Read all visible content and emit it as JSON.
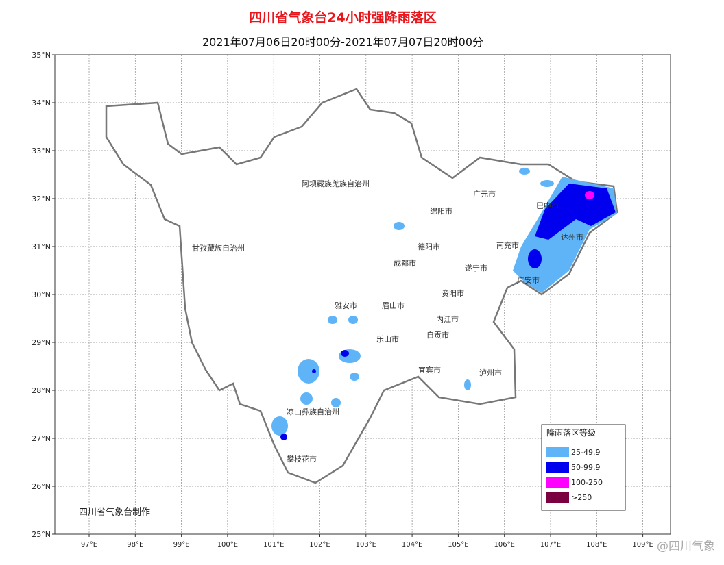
{
  "title": "四川省气象台24小时强降雨落区",
  "subtitle": "2021年07月06日20时00分-2021年07月07日20时00分",
  "lat_labels": [
    "35°N",
    "34°N",
    "33°N",
    "32°N",
    "31°N",
    "30°N",
    "29°N",
    "28°N",
    "27°N",
    "26°N",
    "25°N"
  ],
  "lon_labels": [
    "97°E",
    "98°E",
    "99°E",
    "100°E",
    "101°E",
    "102°E",
    "103°E",
    "104°E",
    "105°E",
    "106°E",
    "107°E",
    "108°E",
    "109°E"
  ],
  "regions": [
    "阿坝藏族羌族自治州",
    "甘孜藏族自治州",
    "广元市",
    "巴中市",
    "绵阳市",
    "达州市",
    "南充市",
    "德阳市",
    "成都市",
    "遂宁市",
    "广安市",
    "资阳市",
    "雅安市",
    "眉山市",
    "内江市",
    "自贡市",
    "乐山市",
    "宜宾市",
    "泸州市",
    "凉山彝族自治州",
    "攀枝花市"
  ],
  "legend": {
    "title": "降雨落区等级",
    "items": [
      {
        "name": "25-49.9",
        "color": "#5fb4f8"
      },
      {
        "name": "50-99.9",
        "color": "#0000ee"
      },
      {
        "name": "100-250",
        "color": "#ff00ff"
      },
      {
        "name": ">250",
        "color": "#7a0040"
      }
    ]
  },
  "credit": "四川省气象台制作",
  "watermark": "@四川气象"
}
